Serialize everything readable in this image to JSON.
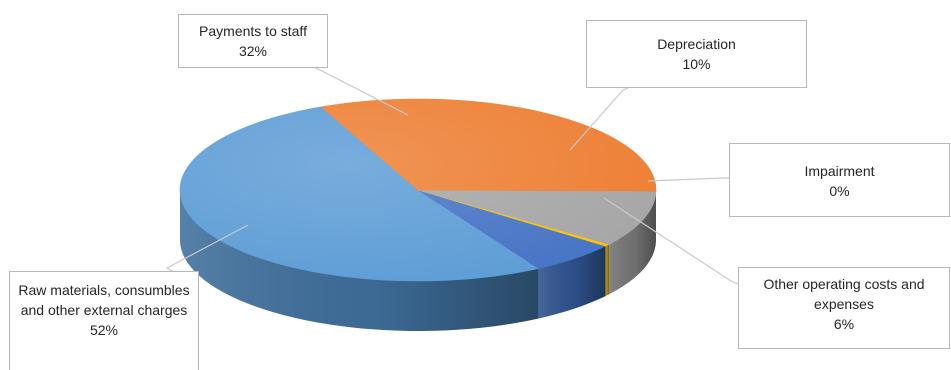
{
  "chart_data": {
    "type": "pie",
    "title": "",
    "slices": [
      {
        "key": "raw",
        "label": "Raw materials, consumbles and other external charges",
        "value": 52,
        "display": "52%",
        "color": "#5b9bd5",
        "dark": "#3f6f9c"
      },
      {
        "key": "staff",
        "label": "Payments to staff",
        "value": 32,
        "display": "32%",
        "color": "#ed7d31",
        "dark": "#b35a1d"
      },
      {
        "key": "dep",
        "label": "Depreciation",
        "value": 10,
        "display": "10%",
        "color": "#a5a5a5",
        "dark": "#767676"
      },
      {
        "key": "imp",
        "label": "Impairment",
        "value": 0.4,
        "display": "0%",
        "color": "#ffc000",
        "dark": "#b88a00"
      },
      {
        "key": "other",
        "label": "Other operating costs and expenses",
        "value": 6,
        "display": "6%",
        "color": "#4472c4",
        "dark": "#2f528f"
      }
    ]
  }
}
